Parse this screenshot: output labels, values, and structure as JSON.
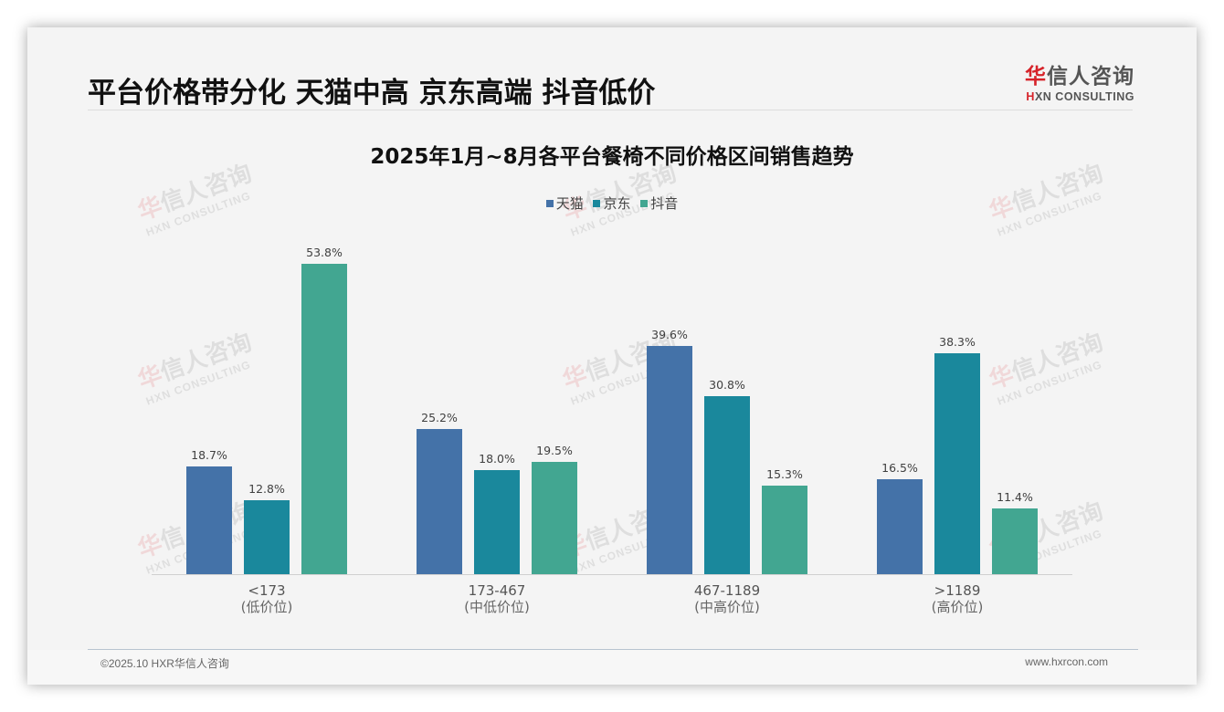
{
  "header": {
    "title": "平台价格带分化 天猫中高 京东高端 抖音低价",
    "logo": {
      "cn_first": "华",
      "cn_rest": "信人咨询",
      "en_first": "H",
      "en_rest": "XN CONSULTING"
    }
  },
  "watermark": {
    "cn_first": "华",
    "cn_rest": "信人咨询",
    "en": "HXN CONSULTING"
  },
  "colors": {
    "tmall": "#4472a8",
    "jd": "#1a889c",
    "douyin": "#42a691",
    "background": "#f4f4f4"
  },
  "chart_data": {
    "type": "bar",
    "title": "2025年1月~8月各平台餐椅不同价格区间销售趋势",
    "xlabel": "",
    "ylabel": "",
    "ylim": [
      0,
      60
    ],
    "grid": false,
    "legend_position": "top",
    "categories": [
      "<173\n(低价位)",
      "173-467\n(中低价位)",
      "467-1189\n(中高价位)",
      ">1189\n(高价位)"
    ],
    "category_labels": [
      {
        "range": "<173",
        "tier": "(低价位)"
      },
      {
        "range": "173-467",
        "tier": "(中低价位)"
      },
      {
        "range": "467-1189",
        "tier": "(中高价位)"
      },
      {
        "range": ">1189",
        "tier": "(高价位)"
      }
    ],
    "series": [
      {
        "name": "天猫",
        "color": "#4472a8",
        "values": [
          18.7,
          25.2,
          39.6,
          16.5
        ],
        "labels": [
          "18.7%",
          "25.2%",
          "39.6%",
          "16.5%"
        ]
      },
      {
        "name": "京东",
        "color": "#1a889c",
        "values": [
          12.8,
          18.0,
          30.8,
          38.3
        ],
        "labels": [
          "12.8%",
          "18.0%",
          "30.8%",
          "38.3%"
        ]
      },
      {
        "name": "抖音",
        "color": "#42a691",
        "values": [
          53.8,
          19.5,
          15.3,
          11.4
        ],
        "labels": [
          "53.8%",
          "19.5%",
          "15.3%",
          "11.4%"
        ]
      }
    ]
  },
  "footer": {
    "copyright": "©2025.10 HXR华信人咨询",
    "website": "www.hxrcon.com"
  }
}
